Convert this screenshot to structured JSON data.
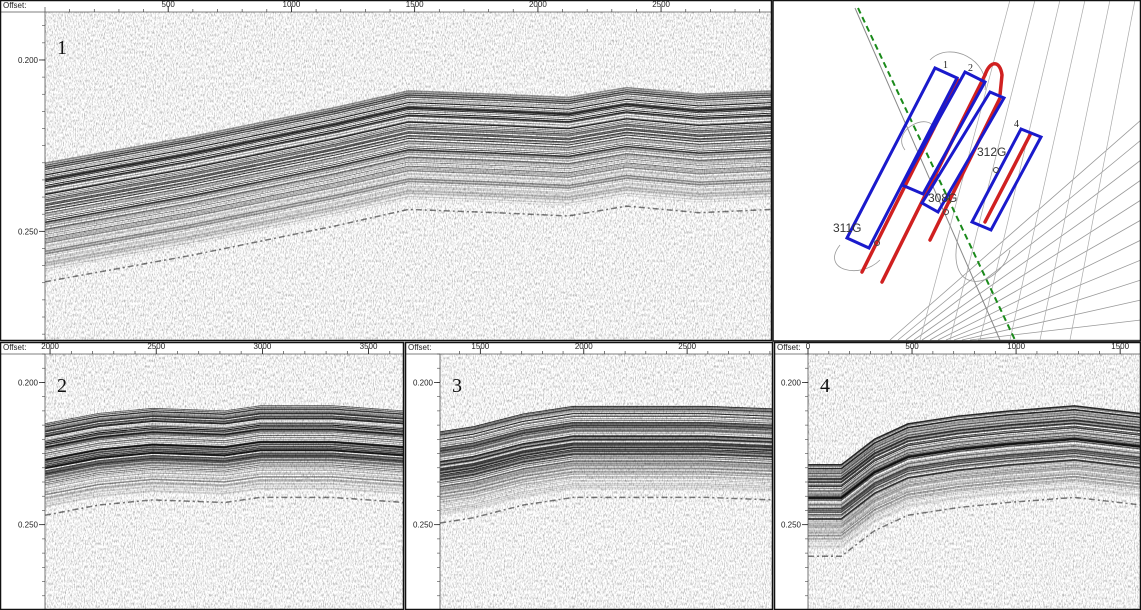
{
  "panels": [
    {
      "number": "1",
      "offset_label": "Offset:",
      "xlim": [
        0,
        2950
      ],
      "xticks": [
        500,
        1000,
        1500,
        2000,
        2500
      ],
      "ylim": [
        0.186,
        0.282
      ],
      "yticks": [
        {
          "value": 0.2,
          "label": "0.200"
        },
        {
          "value": 0.25,
          "label": "0.250"
        }
      ]
    },
    {
      "number": "2",
      "offset_label": "Offset:",
      "xlim": [
        1976,
        3667
      ],
      "xticks": [
        2000,
        2500,
        3000,
        3500
      ],
      "ylim": [
        0.19,
        0.28
      ],
      "yticks": [
        {
          "value": 0.2,
          "label": "0.200"
        },
        {
          "value": 0.25,
          "label": "0.250"
        }
      ]
    },
    {
      "number": "3",
      "offset_label": "Offset:",
      "xlim": [
        1305,
        2915
      ],
      "xticks": [
        1500,
        2000,
        2500
      ],
      "ylim": [
        0.19,
        0.28
      ],
      "yticks": [
        {
          "value": 0.2,
          "label": "0.200"
        },
        {
          "value": 0.25,
          "label": "0.250"
        }
      ]
    },
    {
      "number": "4",
      "offset_label": "Offset:",
      "xlim": [
        0,
        1600
      ],
      "xticks": [
        0,
        500,
        1000,
        1500
      ],
      "ylim": [
        0.19,
        0.28
      ],
      "yticks": [
        {
          "value": 0.2,
          "label": "0.200"
        },
        {
          "value": 0.25,
          "label": "0.250"
        }
      ]
    }
  ],
  "map": {
    "line_labels": [
      "1",
      "2",
      "4"
    ],
    "cores": [
      "311G",
      "308G",
      "312G"
    ]
  }
}
